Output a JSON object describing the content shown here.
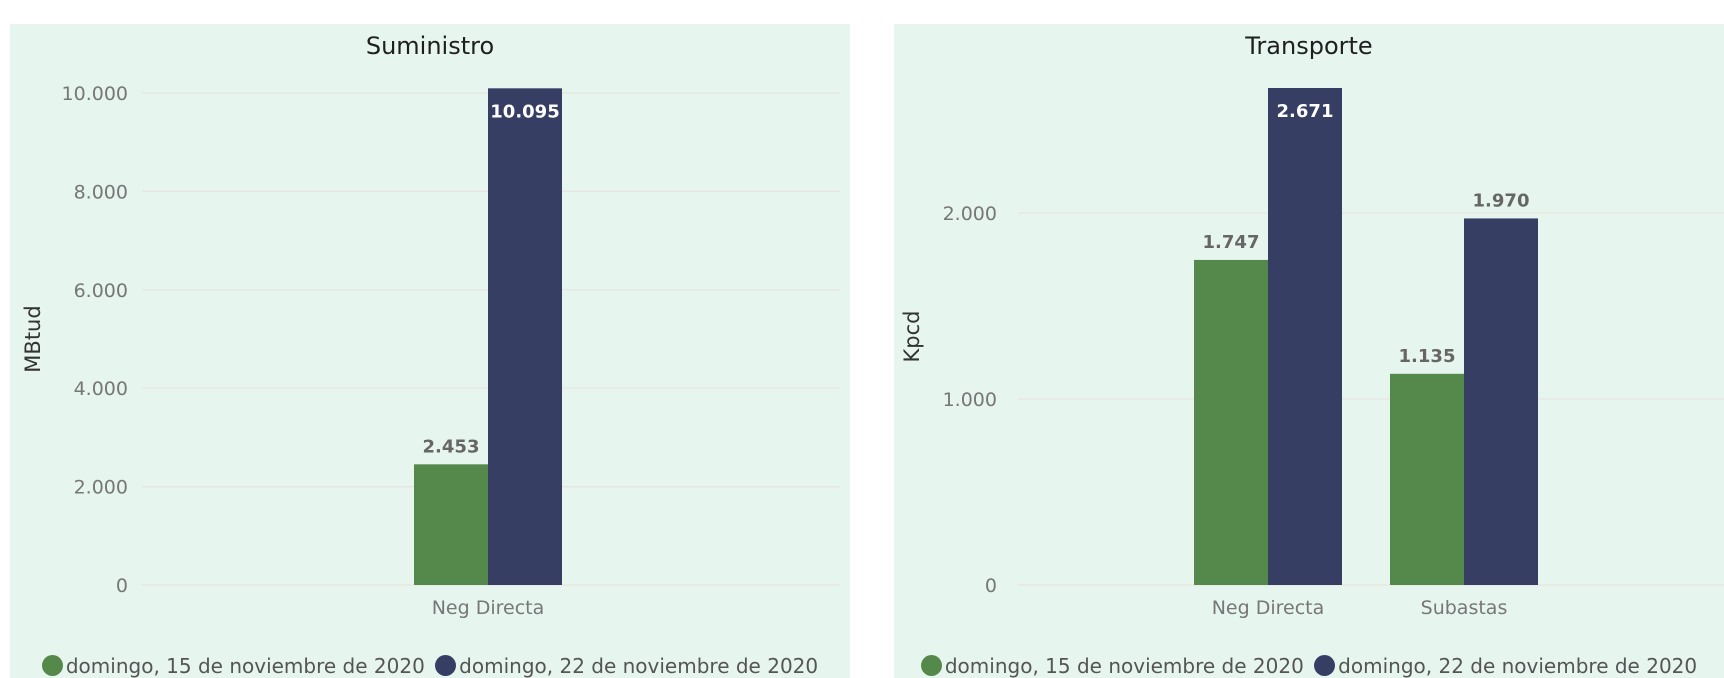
{
  "chart_data": [
    {
      "type": "bar",
      "title": "Suministro",
      "ylabel": "MBtud",
      "xlabel": "",
      "ylim": [
        0,
        10000
      ],
      "yticks": [
        "0",
        "2.000",
        "4.000",
        "6.000",
        "8.000",
        "10.000"
      ],
      "categories": [
        "Neg Directa"
      ],
      "series": [
        {
          "name": "domingo, 15 de noviembre de 2020",
          "values": [
            2453
          ],
          "labels": [
            "2.453"
          ],
          "color": "#55894b"
        },
        {
          "name": "domingo, 22 de noviembre de 2020",
          "values": [
            10095
          ],
          "labels": [
            "10.095"
          ],
          "color": "#363e64"
        }
      ],
      "grid": true,
      "legend": "bottom"
    },
    {
      "type": "bar",
      "title": "Transporte",
      "ylabel": "Kpcd",
      "xlabel": "",
      "ylim": [
        0,
        2671
      ],
      "yticks": [
        "0",
        "1.000",
        "2.000"
      ],
      "categories": [
        "Neg Directa",
        "Subastas"
      ],
      "series": [
        {
          "name": "domingo, 15 de noviembre de 2020",
          "values": [
            1747,
            1135
          ],
          "labels": [
            "1.747",
            "1.135"
          ],
          "color": "#55894b"
        },
        {
          "name": "domingo, 22 de noviembre de 2020",
          "values": [
            2671,
            1970
          ],
          "labels": [
            "2.671",
            "1.970"
          ],
          "color": "#363e64"
        }
      ],
      "grid": true,
      "legend": "bottom"
    }
  ]
}
